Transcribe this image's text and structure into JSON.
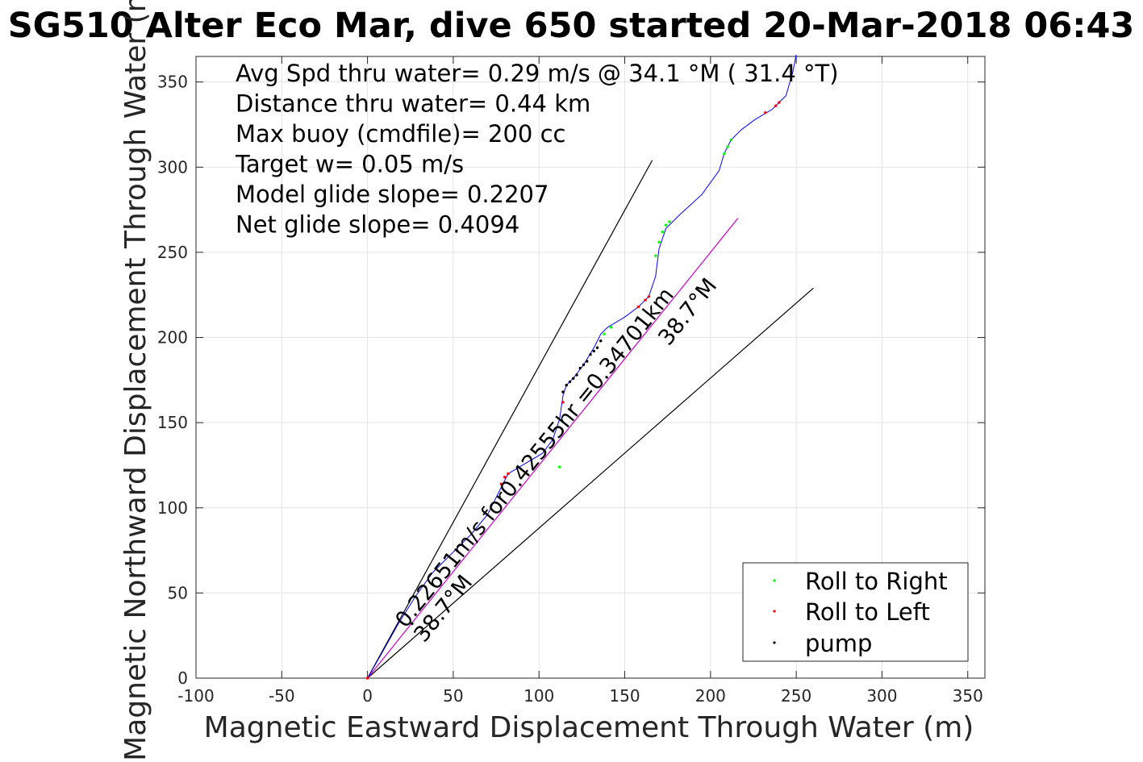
{
  "chart_data": {
    "type": "line",
    "title": "SG510 Alter Eco Mar, dive 650 started 20-Mar-2018 06:43",
    "xlabel": "Magnetic Eastward Displacement Through Water (m)",
    "ylabel": "Magnetic Northward Displacement Through Water (m)",
    "xlim": [
      -100,
      360
    ],
    "ylim": [
      0,
      365
    ],
    "x_ticks": [
      -100,
      -50,
      0,
      50,
      100,
      150,
      200,
      250,
      300,
      350
    ],
    "y_ticks": [
      0,
      50,
      100,
      150,
      200,
      250,
      300,
      350
    ],
    "x_tick_labels": [
      "-100",
      "-50",
      "0",
      "50",
      "100",
      "150",
      "200",
      "250",
      "300",
      "350"
    ],
    "y_tick_labels": [
      "0",
      "50",
      "100",
      "150",
      "200",
      "250",
      "300",
      "350"
    ],
    "grid": true,
    "info_text": [
      "Avg Spd thru water=  0.29 m/s @  34.1 °M ( 31.4 °T)",
      "Distance thru water=  0.44 km",
      "Max buoy (cmdfile)= 200 cc",
      "Target w= 0.05 m/s",
      "Model glide slope= 0.2207",
      "Net glide slope= 0.4094"
    ],
    "track": {
      "color": "#0000ff",
      "points": [
        [
          0,
          0
        ],
        [
          8,
          14
        ],
        [
          18,
          32
        ],
        [
          28,
          48
        ],
        [
          38,
          62
        ],
        [
          50,
          74
        ],
        [
          60,
          84
        ],
        [
          70,
          96
        ],
        [
          78,
          112
        ],
        [
          82,
          120
        ],
        [
          92,
          126
        ],
        [
          102,
          132
        ],
        [
          108,
          140
        ],
        [
          112,
          152
        ],
        [
          114,
          166
        ],
        [
          116,
          172
        ],
        [
          120,
          176
        ],
        [
          126,
          184
        ],
        [
          132,
          194
        ],
        [
          136,
          202
        ],
        [
          140,
          206
        ],
        [
          150,
          212
        ],
        [
          158,
          218
        ],
        [
          164,
          224
        ],
        [
          168,
          236
        ],
        [
          170,
          252
        ],
        [
          174,
          264
        ],
        [
          182,
          272
        ],
        [
          195,
          284
        ],
        [
          205,
          298
        ],
        [
          208,
          308
        ],
        [
          212,
          316
        ],
        [
          218,
          322
        ],
        [
          226,
          328
        ],
        [
          236,
          334
        ],
        [
          244,
          342
        ],
        [
          248,
          356
        ],
        [
          250,
          366
        ]
      ]
    },
    "markers": {
      "right": [
        [
          112,
          124
        ],
        [
          138,
          202
        ],
        [
          142,
          206
        ],
        [
          168,
          248
        ],
        [
          170,
          256
        ],
        [
          172,
          262
        ],
        [
          174,
          266
        ],
        [
          176,
          268
        ],
        [
          208,
          308
        ],
        [
          210,
          312
        ],
        [
          212,
          316
        ]
      ],
      "left": [
        [
          0,
          0
        ],
        [
          78,
          114
        ],
        [
          80,
          118
        ],
        [
          82,
          120
        ],
        [
          114,
          162
        ],
        [
          158,
          218
        ],
        [
          162,
          222
        ],
        [
          164,
          224
        ],
        [
          232,
          332
        ],
        [
          238,
          336
        ],
        [
          240,
          338
        ]
      ],
      "pump": [
        [
          114,
          168
        ],
        [
          116,
          172
        ],
        [
          118,
          174
        ],
        [
          120,
          176
        ],
        [
          122,
          178
        ],
        [
          124,
          182
        ],
        [
          126,
          184
        ],
        [
          128,
          186
        ],
        [
          130,
          190
        ],
        [
          132,
          192
        ],
        [
          134,
          194
        ],
        [
          136,
          198
        ],
        [
          116,
          172
        ],
        [
          26,
          32
        ]
      ]
    },
    "reference_lines": {
      "left_bound": [
        [
          0,
          0
        ],
        [
          166,
          304
        ]
      ],
      "right_bound": [
        [
          0,
          0
        ],
        [
          260,
          229
        ]
      ],
      "course": [
        [
          0,
          0
        ],
        [
          216,
          270
        ]
      ]
    },
    "annotations": {
      "course_label": "0.22651m/s for0.42555hr =0.34701km",
      "heading_label_near": "38.7°M",
      "heading_label_far": "38.7°M"
    },
    "legend": {
      "placement": "bottom-right",
      "entries": [
        {
          "label": "Roll to Right",
          "color": "#00ff00"
        },
        {
          "label": "Roll to Left",
          "color": "#ff0000"
        },
        {
          "label": "pump",
          "color": "#000000"
        }
      ]
    }
  }
}
